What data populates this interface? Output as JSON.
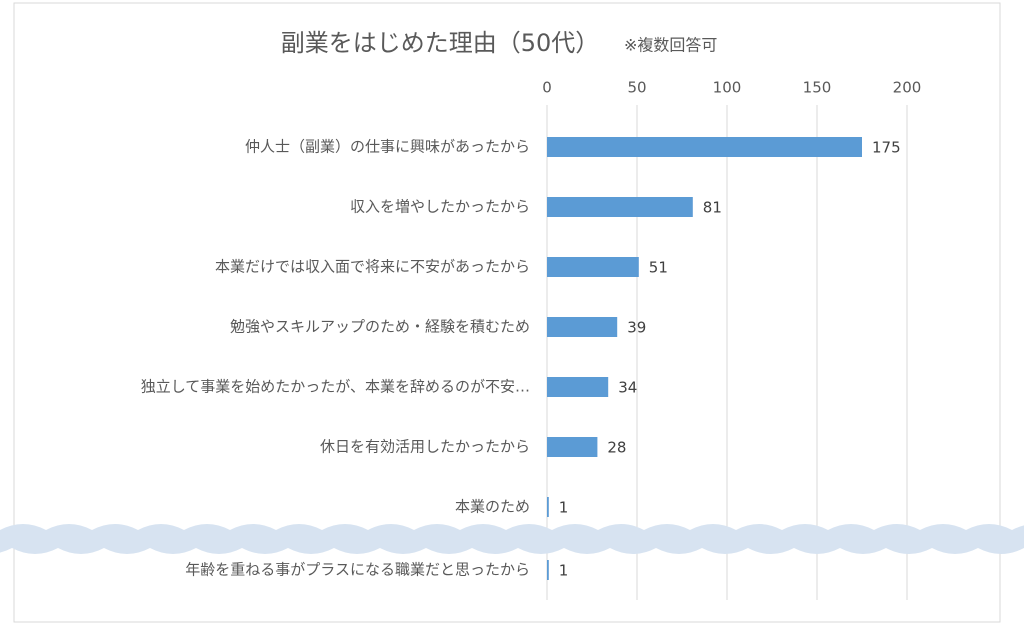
{
  "chart_data": {
    "type": "bar",
    "orientation": "horizontal",
    "title": "副業をはじめた理由（50代）",
    "subtitle": "※複数回答可",
    "categories": [
      "仲人士（副業）の仕事に興味があったから",
      "収入を増やしたかったから",
      "本業だけでは収入面で将来に不安があったから",
      "勉強やスキルアップのため・経験を積むため",
      "独立して事業を始めたかったが、本業を辞めるのが不安…",
      "休日を有効活用したかったから",
      "本業のため",
      "年齢を重ねる事がプラスになる職業だと思ったから"
    ],
    "values": [
      175,
      81,
      51,
      39,
      34,
      28,
      1,
      1
    ],
    "color": "#5b9bd5",
    "xlim": [
      0,
      200
    ],
    "xticks": [
      0,
      50,
      100,
      150,
      200
    ],
    "grid": true
  }
}
